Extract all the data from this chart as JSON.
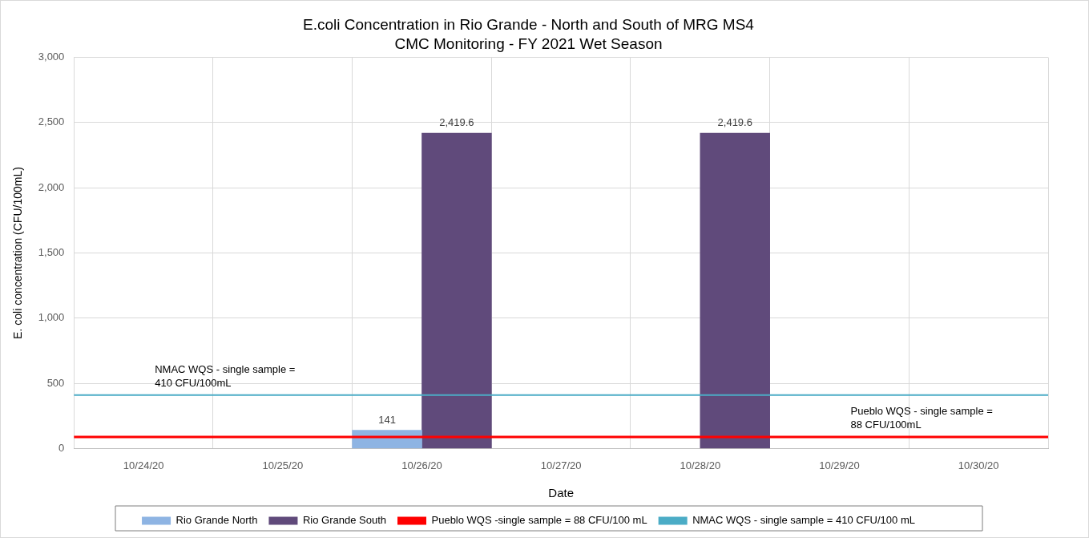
{
  "chart_data": {
    "type": "bar",
    "title": "E.coli Concentration in Rio Grande - North and South of MRG MS4",
    "subtitle": "CMC Monitoring - FY 2021 Wet Season",
    "xlabel": "Date",
    "ylabel": "E. coli concentration (CFU/100mL)",
    "categories": [
      "10/24/20",
      "10/25/20",
      "10/26/20",
      "10/27/20",
      "10/28/20",
      "10/29/20",
      "10/30/20"
    ],
    "series": [
      {
        "name": "Rio Grande North",
        "color": "#8eb4e3",
        "values": [
          null,
          null,
          141,
          null,
          null,
          null,
          null
        ],
        "value_labels": [
          null,
          null,
          "141",
          null,
          null,
          null,
          null
        ]
      },
      {
        "name": "Rio Grande South",
        "color": "#604a7b",
        "values": [
          null,
          null,
          2419.6,
          null,
          2419.6,
          null,
          null
        ],
        "value_labels": [
          null,
          null,
          "2,419.6",
          null,
          "2,419.6",
          null,
          null
        ]
      }
    ],
    "ylim": [
      0,
      3000
    ],
    "yticks": [
      0,
      500,
      {
        "value": 1000,
        "label": "1,000"
      },
      {
        "value": 1500,
        "label": "1,500"
      },
      {
        "value": 2000,
        "label": "2,000"
      },
      {
        "value": 2500,
        "label": "2,500"
      },
      {
        "value": 3000,
        "label": "3,000"
      }
    ],
    "ref_lines": [
      {
        "axis": "y",
        "value": 88,
        "label": "Pueblo WQS -single sample = 88 CFU/100 mL",
        "color": "#ff0000"
      },
      {
        "axis": "y",
        "value": 410,
        "label": "NMAC WQS - single sample = 410 CFU/100 mL",
        "color": "#4bacc6"
      }
    ],
    "annotations": [
      {
        "text": "NMAC WQS - single sample =\n410 CFU/100mL",
        "x": "10/24/20",
        "y": 410
      },
      {
        "text": "Pueblo WQS - single sample =\n88 CFU/100mL",
        "x": "10/29/20",
        "y": 88
      }
    ],
    "grid": true,
    "legend": "bottom"
  }
}
